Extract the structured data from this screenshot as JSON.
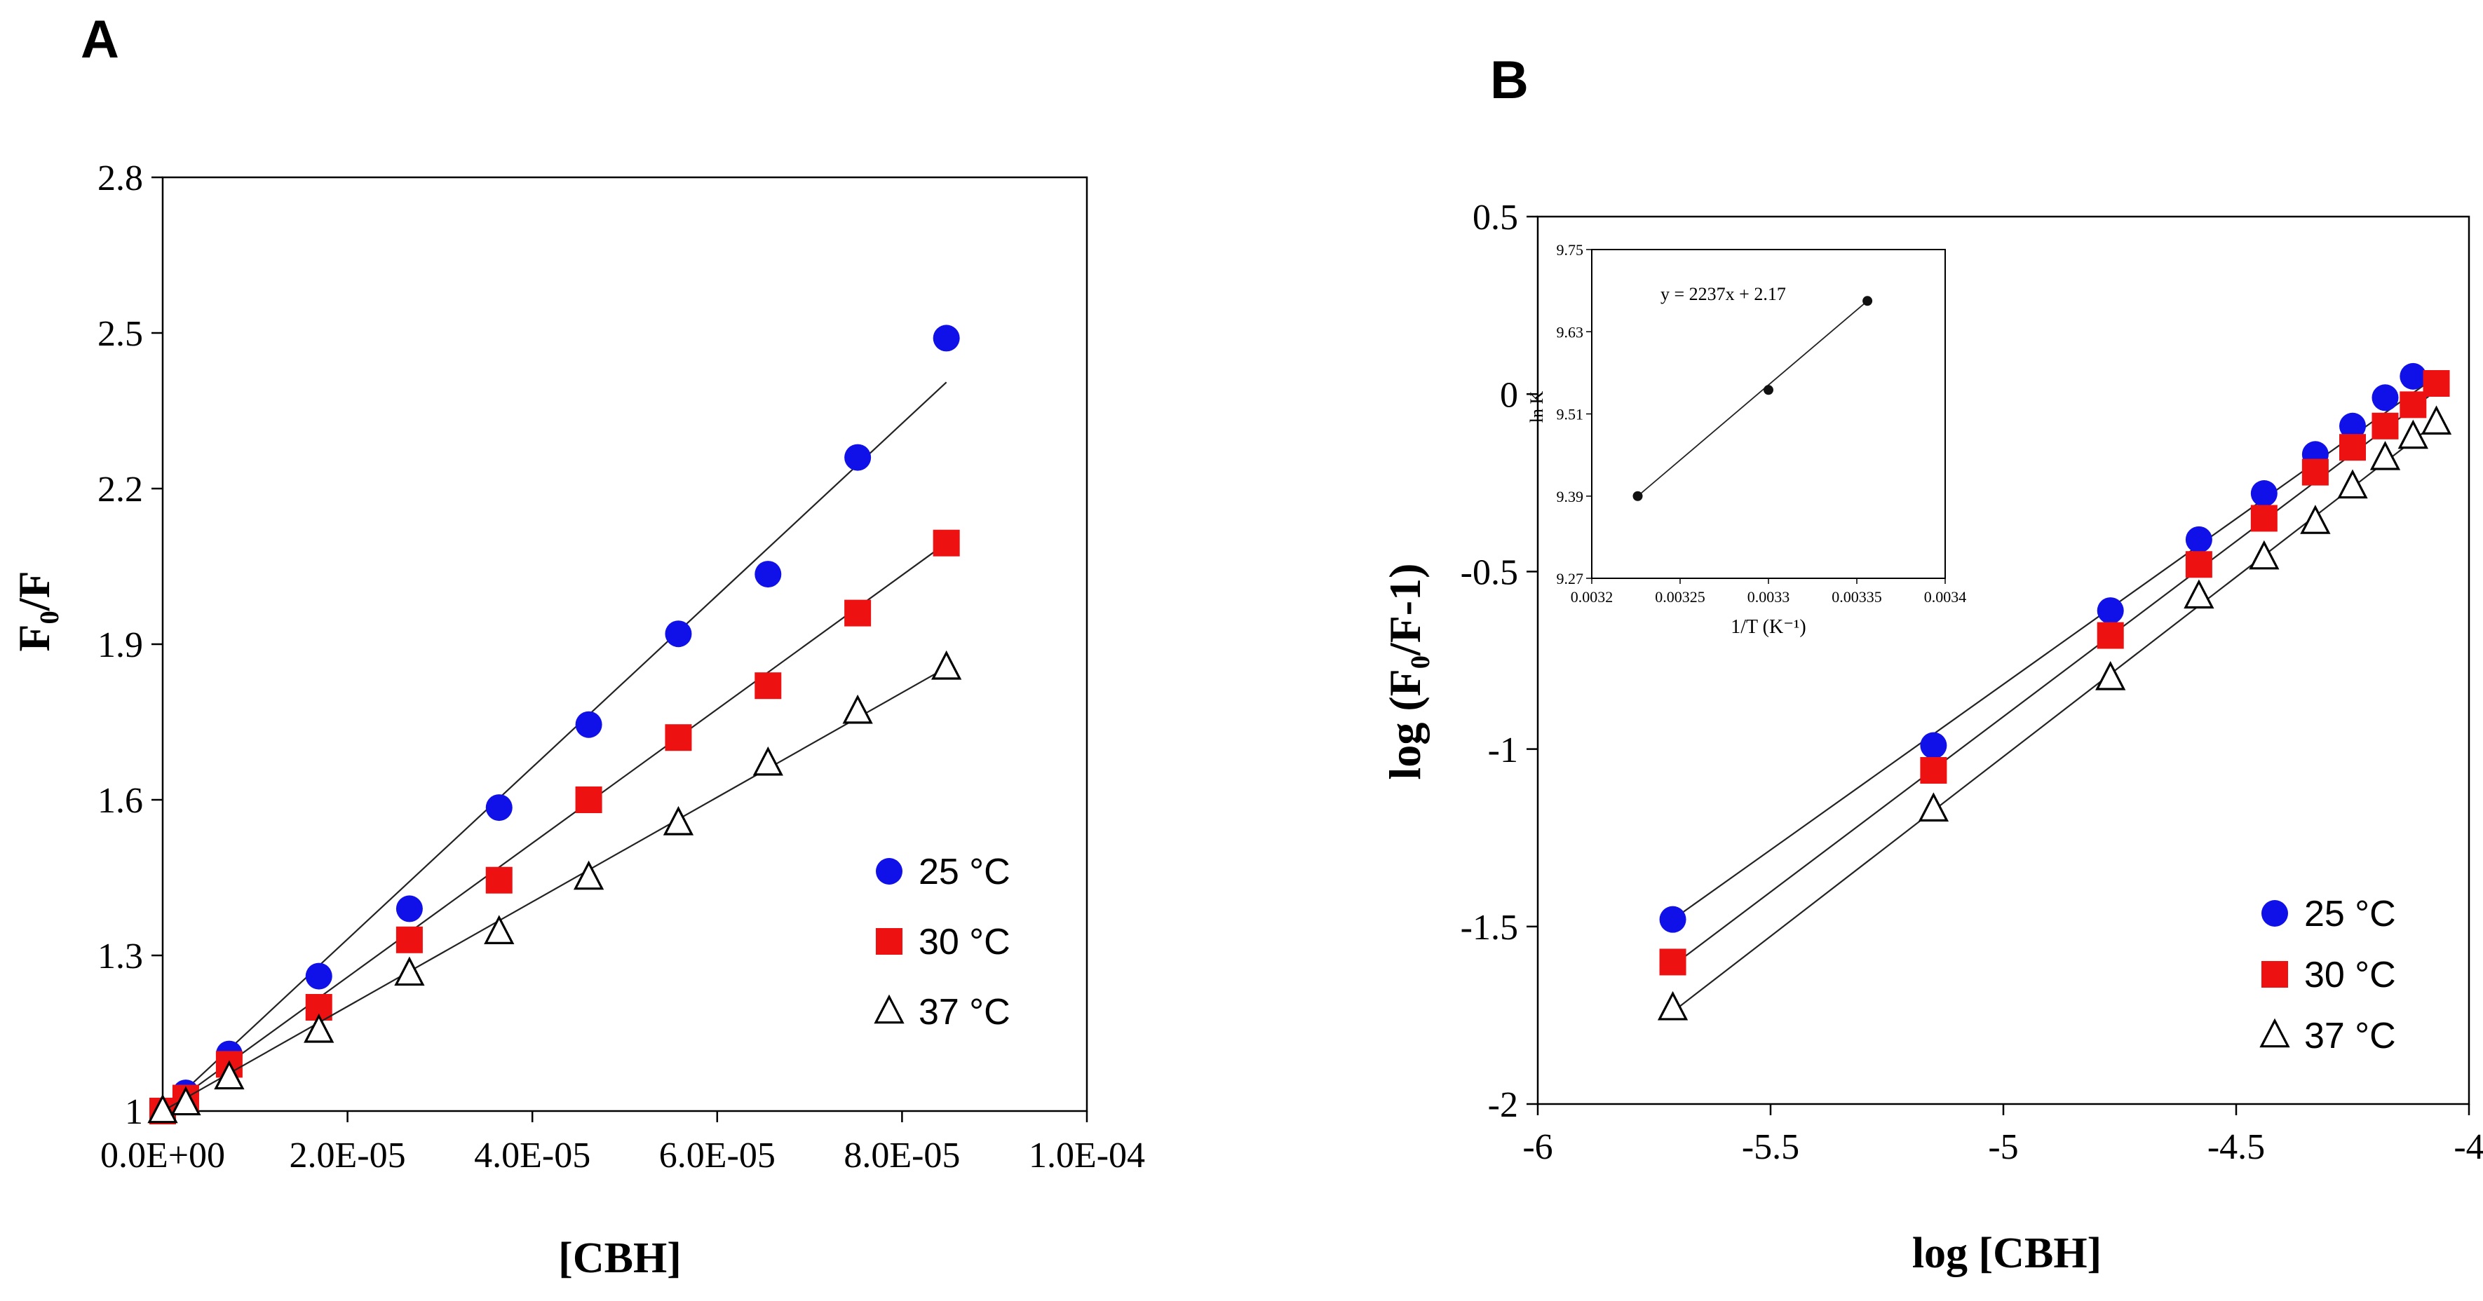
{
  "colors": {
    "s25": "#1010E8",
    "s30": "#EE1111",
    "s37": "#000000",
    "axis": "#000000",
    "background": "#FFFFFF"
  },
  "marker_shapes": [
    "circle",
    "square",
    "triangle-open"
  ],
  "chart_data": [
    {
      "type": "scatter",
      "panel_label": "A",
      "title": "",
      "xlabel": "[CBH]",
      "ylabel": "F₀/F",
      "xlim": [
        0,
        0.0001
      ],
      "ylim": [
        1,
        2.8
      ],
      "xticks": [
        0,
        2e-05,
        4e-05,
        6e-05,
        8e-05,
        0.0001
      ],
      "xtick_labels": [
        "0.0E+00",
        "2.0E-05",
        "4.0E-05",
        "6.0E-05",
        "8.0E-05",
        "1.0E-04"
      ],
      "yticks": [
        1,
        1.3,
        1.6,
        1.9,
        2.2,
        2.5,
        2.8
      ],
      "ytick_labels": [
        "1",
        "1.3",
        "1.6",
        "1.9",
        "2.2",
        "2.5",
        "2.8"
      ],
      "grid": false,
      "legend_position": "bottom-right",
      "fit_lines": true,
      "series": [
        {
          "name": "25 °C",
          "x": [
            0,
            2.5e-06,
            7.2e-06,
            1.69e-05,
            2.67e-05,
            3.64e-05,
            4.61e-05,
            5.58e-05,
            6.55e-05,
            7.52e-05,
            8.48e-05
          ],
          "y": [
            1.0,
            1.035,
            1.11,
            1.26,
            1.39,
            1.585,
            1.745,
            1.92,
            2.035,
            2.26,
            2.49
          ],
          "fit": [
            1.0,
            2.405
          ]
        },
        {
          "name": "30 °C",
          "x": [
            0,
            2.5e-06,
            7.2e-06,
            1.69e-05,
            2.67e-05,
            3.64e-05,
            4.61e-05,
            5.58e-05,
            6.55e-05,
            7.52e-05,
            8.48e-05
          ],
          "y": [
            1.0,
            1.025,
            1.09,
            1.2,
            1.33,
            1.445,
            1.6,
            1.72,
            1.82,
            1.96,
            2.095
          ],
          "fit": [
            1.0,
            2.095
          ]
        },
        {
          "name": "37 °C",
          "x": [
            0,
            2.5e-06,
            7.2e-06,
            1.69e-05,
            2.67e-05,
            3.64e-05,
            4.61e-05,
            5.58e-05,
            6.55e-05,
            7.52e-05,
            8.48e-05
          ],
          "y": [
            1.0,
            1.015,
            1.065,
            1.155,
            1.265,
            1.345,
            1.45,
            1.555,
            1.67,
            1.77,
            1.855
          ],
          "fit": [
            1.0,
            1.855
          ]
        }
      ]
    },
    {
      "type": "scatter",
      "panel_label": "B",
      "title": "",
      "xlabel": "log [CBH]",
      "ylabel": "log (F₀/F-1)",
      "xlim": [
        -6,
        -4
      ],
      "ylim": [
        -2,
        0.5
      ],
      "xticks": [
        -6,
        -5.5,
        -5,
        -4.5,
        -4
      ],
      "xtick_labels": [
        "-6",
        "-5.5",
        "-5",
        "-4.5",
        "-4"
      ],
      "yticks": [
        -2,
        -1.5,
        -1,
        -0.5,
        0,
        0.5
      ],
      "ytick_labels": [
        "-2",
        "-1.5",
        "-1",
        "-0.5",
        "0",
        "0.5"
      ],
      "grid": false,
      "legend_position": "bottom-right",
      "fit_lines": true,
      "series": [
        {
          "name": "25 °C",
          "x": [
            -5.71,
            -5.15,
            -4.77,
            -4.58,
            -4.44,
            -4.33,
            -4.25,
            -4.18,
            -4.12,
            -4.07
          ],
          "y": [
            -1.48,
            -0.99,
            -0.61,
            -0.41,
            -0.28,
            -0.17,
            -0.09,
            -0.01,
            0.05,
            0.03
          ],
          "fit": [
            [
              -5.71,
              -1.48
            ],
            [
              -4.07,
              0.05
            ]
          ]
        },
        {
          "name": "30 °C",
          "x": [
            -5.71,
            -5.15,
            -4.77,
            -4.58,
            -4.44,
            -4.33,
            -4.25,
            -4.18,
            -4.12,
            -4.07
          ],
          "y": [
            -1.6,
            -1.06,
            -0.68,
            -0.48,
            -0.35,
            -0.22,
            -0.15,
            -0.09,
            -0.03,
            0.03
          ],
          "fit": [
            [
              -5.71,
              -1.61
            ],
            [
              -4.07,
              0.01
            ]
          ]
        },
        {
          "name": "37 °C",
          "x": [
            -5.71,
            -5.15,
            -4.77,
            -4.58,
            -4.44,
            -4.33,
            -4.25,
            -4.18,
            -4.12,
            -4.07
          ],
          "y": [
            -1.73,
            -1.17,
            -0.8,
            -0.57,
            -0.46,
            -0.36,
            -0.26,
            -0.18,
            -0.12,
            -0.08
          ],
          "fit": [
            [
              -5.71,
              -1.74
            ],
            [
              -4.07,
              -0.08
            ]
          ]
        }
      ],
      "inset": {
        "type": "scatter",
        "xlabel": "1/T (K⁻¹)",
        "ylabel": "ln K",
        "xlim": [
          0.0032,
          0.0034
        ],
        "ylim": [
          9.27,
          9.75
        ],
        "xticks": [
          0.0032,
          0.00325,
          0.0033,
          0.00335,
          0.0034
        ],
        "xtick_labels": [
          "0.0032",
          "0.00325",
          "0.0033",
          "0.00335",
          "0.0034"
        ],
        "yticks": [
          9.27,
          9.39,
          9.51,
          9.63,
          9.75
        ],
        "ytick_labels": [
          "9.27",
          "9.39",
          "9.51",
          "9.63",
          "9.75"
        ],
        "equation": "y = 2237x + 2.17",
        "points": {
          "x": [
            0.003226,
            0.0033,
            0.003356
          ],
          "y": [
            9.39,
            9.545,
            9.675
          ]
        }
      }
    }
  ]
}
